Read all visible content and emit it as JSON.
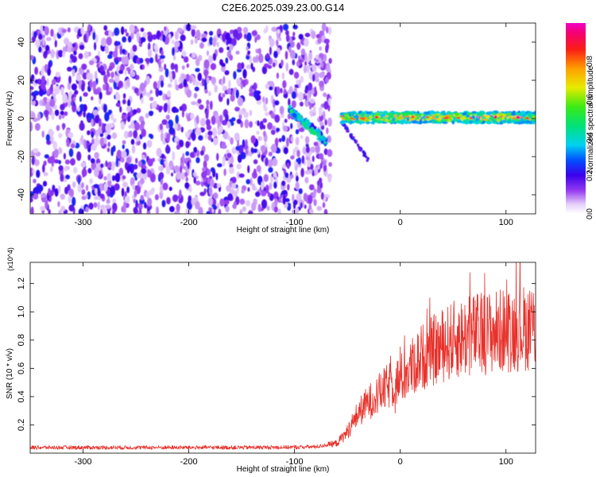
{
  "title": "C2E6.2025.039.23.00.G14",
  "chart_data": [
    {
      "type": "heatmap",
      "xlabel": "Height of straight line (km)",
      "ylabel": "Frequency (Hz)",
      "xlim": [
        -350,
        128
      ],
      "ylim": [
        -50,
        50
      ],
      "x_ticks": [
        -300,
        -200,
        -100,
        0,
        100
      ],
      "x_tick_labels": [
        "-300",
        "-200",
        "-100",
        "0",
        "100"
      ],
      "y_ticks": [
        -40,
        -20,
        0,
        20,
        40
      ],
      "y_tick_labels": [
        "-40",
        "-20",
        "0",
        "20",
        "40"
      ],
      "colorbar": {
        "label": "Normalized spectral amplitude",
        "range": [
          0,
          1
        ],
        "ticks": [
          0.0,
          0.2,
          0.4,
          0.6,
          0.8
        ],
        "tick_labels": [
          "0.0",
          "0.2",
          "0.4",
          "0.6",
          "0.8"
        ],
        "colormap": "rainbow (white-purple-blue-cyan-green-yellow-orange-red-magenta)"
      },
      "regions": [
        {
          "description": "broadband noise",
          "x_range": [
            -350,
            -78
          ],
          "freq_range": [
            -50,
            48
          ],
          "amplitude": [
            0.05,
            0.25
          ]
        },
        {
          "description": "signal onset, falling frequency",
          "x_range": [
            -105,
            -70
          ],
          "freq_range": [
            -12,
            5
          ],
          "amplitude": [
            0.2,
            0.5
          ]
        },
        {
          "description": "tracked carrier near 0 Hz",
          "x_range": [
            -55,
            128
          ],
          "freq_range": [
            -3,
            4
          ],
          "amplitude": [
            0.3,
            1.0
          ]
        }
      ]
    },
    {
      "type": "line",
      "xlabel": "Height of straight line (km)",
      "ylabel": "SNR (10 * v/v)",
      "y_multiplier": "(x10^4)",
      "xlim": [
        -350,
        128
      ],
      "ylim": [
        0,
        13500
      ],
      "x_ticks": [
        -300,
        -200,
        -100,
        0,
        100
      ],
      "x_tick_labels": [
        "-300",
        "-200",
        "-100",
        "0",
        "100"
      ],
      "y_ticks": [
        2000,
        4000,
        6000,
        8000,
        10000,
        12000
      ],
      "y_tick_labels": [
        "0.2",
        "0.4",
        "0.6",
        "0.8",
        "1.0",
        "1.2"
      ],
      "color": "#e8302a",
      "series": [
        {
          "x": [
            -350,
            -300,
            -250,
            -200,
            -150,
            -100,
            -80,
            -60,
            -50,
            -40,
            -30,
            -20,
            -10,
            0,
            10,
            20,
            30,
            40,
            50,
            60,
            70,
            80,
            90,
            100,
            110,
            120,
            128
          ],
          "y": [
            400,
            400,
            400,
            400,
            400,
            420,
            450,
            700,
            1500,
            2800,
            3600,
            4200,
            4800,
            5200,
            6000,
            6800,
            7200,
            7600,
            8000,
            8200,
            8400,
            8500,
            8600,
            8700,
            8800,
            8900,
            9000
          ]
        }
      ]
    }
  ]
}
